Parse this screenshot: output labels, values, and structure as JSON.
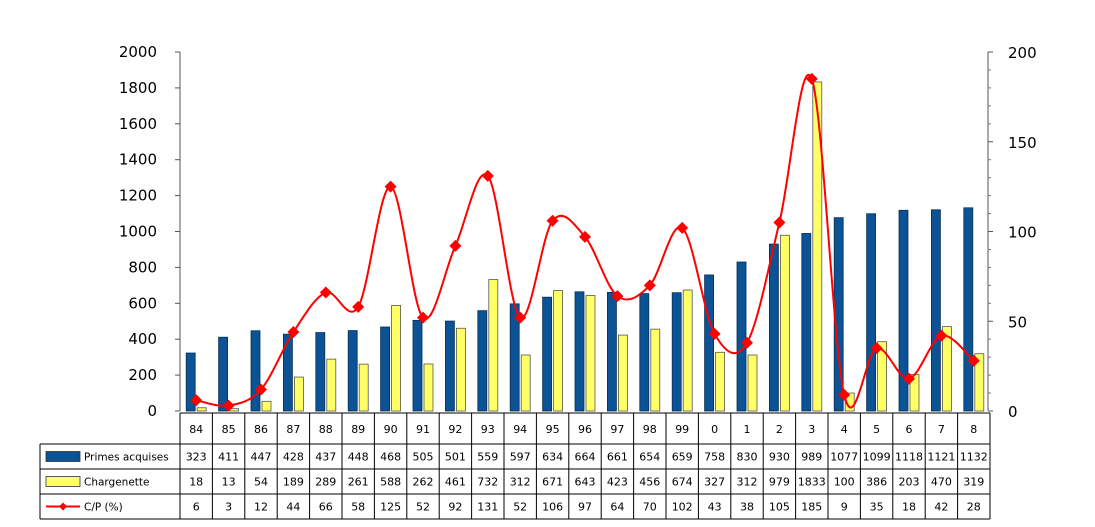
{
  "chart_data": {
    "type": "bar",
    "title": "",
    "xlabel": "",
    "ylabel": "",
    "ylim": [
      0,
      2000
    ],
    "y2lim": [
      0,
      200
    ],
    "y_ticks": [
      "0",
      "200",
      "400",
      "600",
      "800",
      "1000",
      "1200",
      "1400",
      "1600",
      "1800",
      "2000"
    ],
    "y2_ticks": [
      "0",
      "50",
      "100",
      "150",
      "200"
    ],
    "categories": [
      "84",
      "85",
      "86",
      "87",
      "88",
      "89",
      "90",
      "91",
      "92",
      "93",
      "94",
      "95",
      "96",
      "97",
      "98",
      "99",
      "0",
      "1",
      "2",
      "3",
      "4",
      "5",
      "6",
      "7",
      "8"
    ],
    "series": [
      {
        "name": "Primes acquises",
        "type": "bar",
        "color": "#0b5394",
        "values": [
          323,
          411,
          447,
          428,
          437,
          448,
          468,
          505,
          501,
          559,
          597,
          634,
          664,
          661,
          654,
          659,
          758,
          830,
          930,
          989,
          1077,
          1099,
          1118,
          1121,
          1132
        ]
      },
      {
        "name": "Chargenette",
        "type": "bar",
        "color": "#ffff66",
        "values": [
          18,
          13,
          54,
          189,
          289,
          261,
          588,
          262,
          461,
          732,
          312,
          671,
          643,
          423,
          456,
          674,
          327,
          312,
          979,
          1833,
          100,
          386,
          203,
          470,
          319
        ]
      },
      {
        "name": "C/P (%)",
        "type": "line",
        "axis": "right",
        "color": "#ff0000",
        "values": [
          6,
          3,
          12,
          44,
          66,
          58,
          125,
          52,
          92,
          131,
          52,
          106,
          97,
          64,
          70,
          102,
          43,
          38,
          105,
          185,
          9,
          35,
          18,
          42,
          28
        ]
      }
    ],
    "legend": "data-table-below"
  }
}
